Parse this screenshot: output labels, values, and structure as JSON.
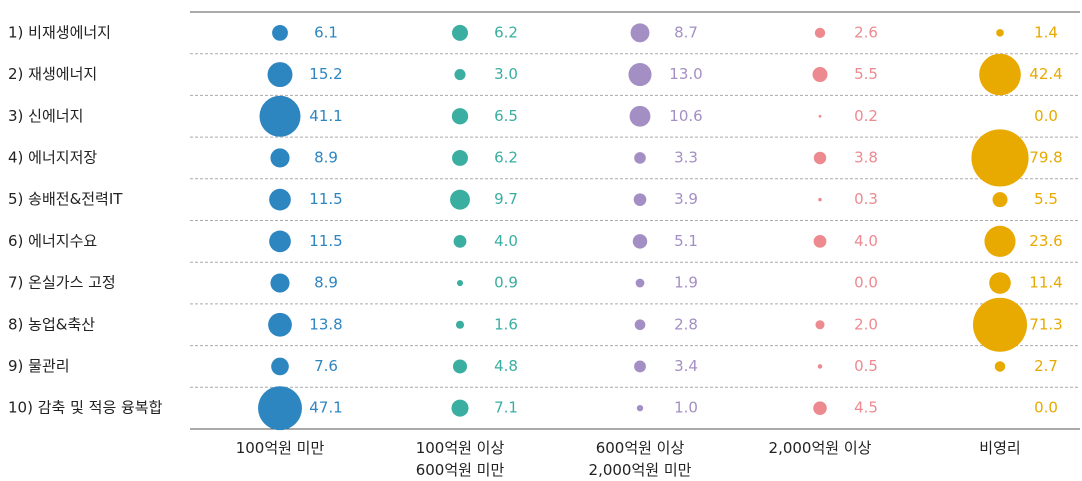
{
  "chart_data": {
    "type": "bubble",
    "categories": [
      "1) 비재생에너지",
      "2) 재생에너지",
      "3) 신에너지",
      "4) 에너지저장",
      "5) 송배전&전력IT",
      "6) 에너지수요",
      "7) 온실가스 고정",
      "8) 농업&축산",
      "9) 물관리",
      "10) 감축 및 적응 융복합"
    ],
    "series": [
      {
        "name": "100억원 미만",
        "color": "#2e86c1",
        "values": [
          6.1,
          15.2,
          41.1,
          8.9,
          11.5,
          11.5,
          8.9,
          13.8,
          7.6,
          47.1
        ],
        "value_labels": [
          "6.1",
          "15.2",
          "41.1",
          "8.9",
          "11.5",
          "11.5",
          "8.9",
          "13.8",
          "7.6",
          "47.1"
        ]
      },
      {
        "name": "100억원 이상\n600억원 미만",
        "color": "#3aaea0",
        "values": [
          6.2,
          3.0,
          6.5,
          6.2,
          9.7,
          4.0,
          0.9,
          1.6,
          4.8,
          7.1
        ],
        "value_labels": [
          "6.2",
          "3.0",
          "6.5",
          "6.2",
          "9.7",
          "4.0",
          "0.9",
          "1.6",
          "4.8",
          "7.1"
        ]
      },
      {
        "name": "600억원 이상\n2,000억원 미만",
        "color": "#a48fc4",
        "values": [
          8.7,
          13.0,
          10.6,
          3.3,
          3.9,
          5.1,
          1.9,
          2.8,
          3.4,
          1.0
        ],
        "value_labels": [
          "8.7",
          "13.0",
          "10.6",
          "3.3",
          "3.9",
          "5.1",
          "1.9",
          "2.8",
          "3.4",
          "1.0"
        ]
      },
      {
        "name": "2,000억원 이상",
        "color": "#ec8a90",
        "values": [
          2.6,
          5.5,
          0.2,
          3.8,
          0.3,
          4.0,
          0.0,
          2.0,
          0.5,
          4.5
        ],
        "value_labels": [
          "2.6",
          "5.5",
          "0.2",
          "3.8",
          "0.3",
          "4.0",
          "0.0",
          "2.0",
          "0.5",
          "4.5"
        ]
      },
      {
        "name": "비영리",
        "color": "#e8a900",
        "values": [
          1.4,
          42.4,
          0.0,
          79.8,
          5.5,
          23.6,
          11.4,
          71.3,
          2.7,
          0.0
        ],
        "value_labels": [
          "1.4",
          "42.4",
          "0.0",
          "79.8",
          "5.5",
          "23.6",
          "11.4",
          "71.3",
          "2.7",
          "0.0"
        ]
      }
    ]
  }
}
